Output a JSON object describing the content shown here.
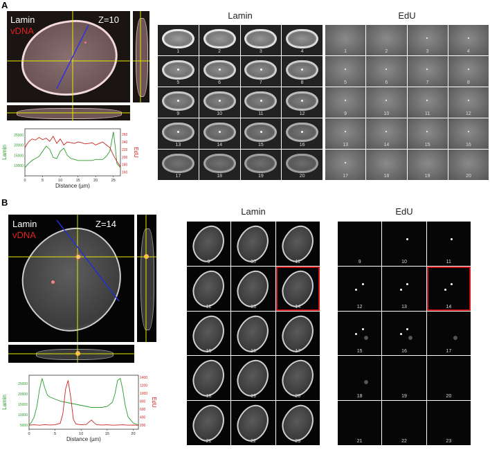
{
  "panelA": {
    "letter": "A",
    "image": {
      "channel1": "Lamin",
      "channel2": "vDNA",
      "z": "Z=10"
    },
    "lamin_title": "Lamin",
    "edu_title": "EdU",
    "tiles": [
      "1",
      "2",
      "3",
      "4",
      "5",
      "6",
      "7",
      "8",
      "9",
      "10",
      "11",
      "12",
      "13",
      "14",
      "15",
      "16",
      "17",
      "18",
      "19",
      "20"
    ]
  },
  "panelB": {
    "letter": "B",
    "image": {
      "channel1": "Lamin",
      "channel2": "vDNA",
      "z": "Z=14"
    },
    "lamin_title": "Lamin",
    "edu_title": "EdU",
    "tiles": [
      "9",
      "10",
      "11",
      "12",
      "13",
      "14",
      "15",
      "16",
      "17",
      "18",
      "19",
      "20",
      "21",
      "22",
      "23"
    ],
    "highlighted_tile": "14"
  },
  "chart_data": [
    {
      "type": "line",
      "xlabel": "Distance (µm)",
      "ylabel_left": "Lamin",
      "ylabel_right": "EdU",
      "x_ticks": [
        "0",
        "5",
        "10",
        "15",
        "20",
        "25"
      ],
      "y_left_ticks": [
        "10000",
        "15000",
        "20000",
        "25000"
      ],
      "y_right_ticks": [
        "160",
        "180",
        "200",
        "220",
        "240",
        "260"
      ],
      "xlim": [
        0,
        27
      ],
      "ylim_left": [
        5000,
        28000
      ],
      "ylim_right": [
        150,
        275
      ],
      "series": [
        {
          "color": "#2a9a2a",
          "axis": "left",
          "x": [
            0,
            1,
            2,
            3,
            4,
            5,
            6,
            7,
            8,
            9,
            10,
            11,
            12,
            13,
            14,
            15,
            16,
            17,
            18,
            19,
            20,
            21,
            22,
            23,
            24,
            25,
            25.5,
            26,
            27
          ],
          "y": [
            9000,
            11000,
            12500,
            13500,
            14500,
            17000,
            19500,
            18000,
            14000,
            13500,
            17000,
            18500,
            15000,
            13500,
            13000,
            12500,
            12500,
            12500,
            12500,
            12500,
            13000,
            13000,
            13000,
            14500,
            17000,
            26500,
            20000,
            11000,
            9000
          ]
        },
        {
          "color": "#cc2020",
          "axis": "right",
          "x": [
            0,
            1,
            2,
            3,
            4,
            5,
            6,
            7,
            8,
            9,
            10,
            11,
            12,
            13,
            14,
            15,
            16,
            17,
            18,
            19,
            20,
            21,
            22,
            23,
            24,
            25,
            26,
            27
          ],
          "y": [
            225,
            240,
            248,
            245,
            252,
            246,
            250,
            242,
            255,
            236,
            248,
            232,
            240,
            238,
            236,
            240,
            238,
            235,
            236,
            238,
            232,
            236,
            240,
            232,
            225,
            205,
            188,
            175
          ]
        }
      ]
    },
    {
      "type": "line",
      "xlabel": "Distance (µm)",
      "ylabel_left": "Lamin",
      "ylabel_right": "EdU",
      "x_ticks": [
        "0",
        "5",
        "10",
        "15",
        "20"
      ],
      "y_left_ticks": [
        "5000",
        "10000",
        "15000",
        "20000",
        "25000"
      ],
      "y_right_ticks": [
        "200",
        "400",
        "600",
        "800",
        "1000",
        "1200",
        "1400"
      ],
      "xlim": [
        0,
        21
      ],
      "ylim_left": [
        3000,
        29000
      ],
      "ylim_right": [
        100,
        1450
      ],
      "series": [
        {
          "color": "#2a9a2a",
          "axis": "left",
          "x": [
            0,
            0.5,
            1,
            1.5,
            2,
            2.5,
            3,
            3.5,
            4,
            5,
            6,
            7,
            8,
            9,
            10,
            11,
            12,
            13,
            14,
            15,
            16,
            16.5,
            17,
            17.5,
            18,
            18.5,
            19,
            20,
            21
          ],
          "y": [
            5000,
            6500,
            9000,
            14000,
            22000,
            27500,
            23000,
            19500,
            18500,
            17500,
            16500,
            16000,
            15500,
            15000,
            14500,
            14000,
            13500,
            13500,
            13500,
            14000,
            16000,
            20000,
            26500,
            27500,
            22000,
            14000,
            9000,
            6000,
            5000
          ]
        },
        {
          "color": "#cc2020",
          "axis": "right",
          "x": [
            0,
            1,
            2,
            3,
            4,
            5,
            6,
            6.5,
            7,
            7.5,
            8,
            8.5,
            9,
            10,
            11,
            11.5,
            12,
            12.5,
            13,
            14,
            15,
            16,
            17,
            18,
            19,
            20,
            21
          ],
          "y": [
            200,
            210,
            200,
            215,
            205,
            210,
            250,
            500,
            1100,
            1320,
            900,
            350,
            230,
            210,
            220,
            280,
            330,
            260,
            210,
            205,
            210,
            200,
            205,
            210,
            200,
            205,
            200
          ]
        }
      ]
    }
  ]
}
